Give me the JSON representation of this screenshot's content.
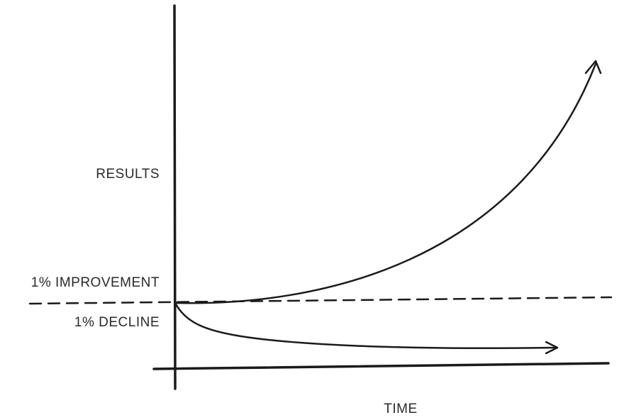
{
  "labels": {
    "y_axis": "RESULTS",
    "improvement": "1% IMPROVEMENT",
    "decline": "1% DECLINE",
    "x_axis": "TIME"
  }
}
